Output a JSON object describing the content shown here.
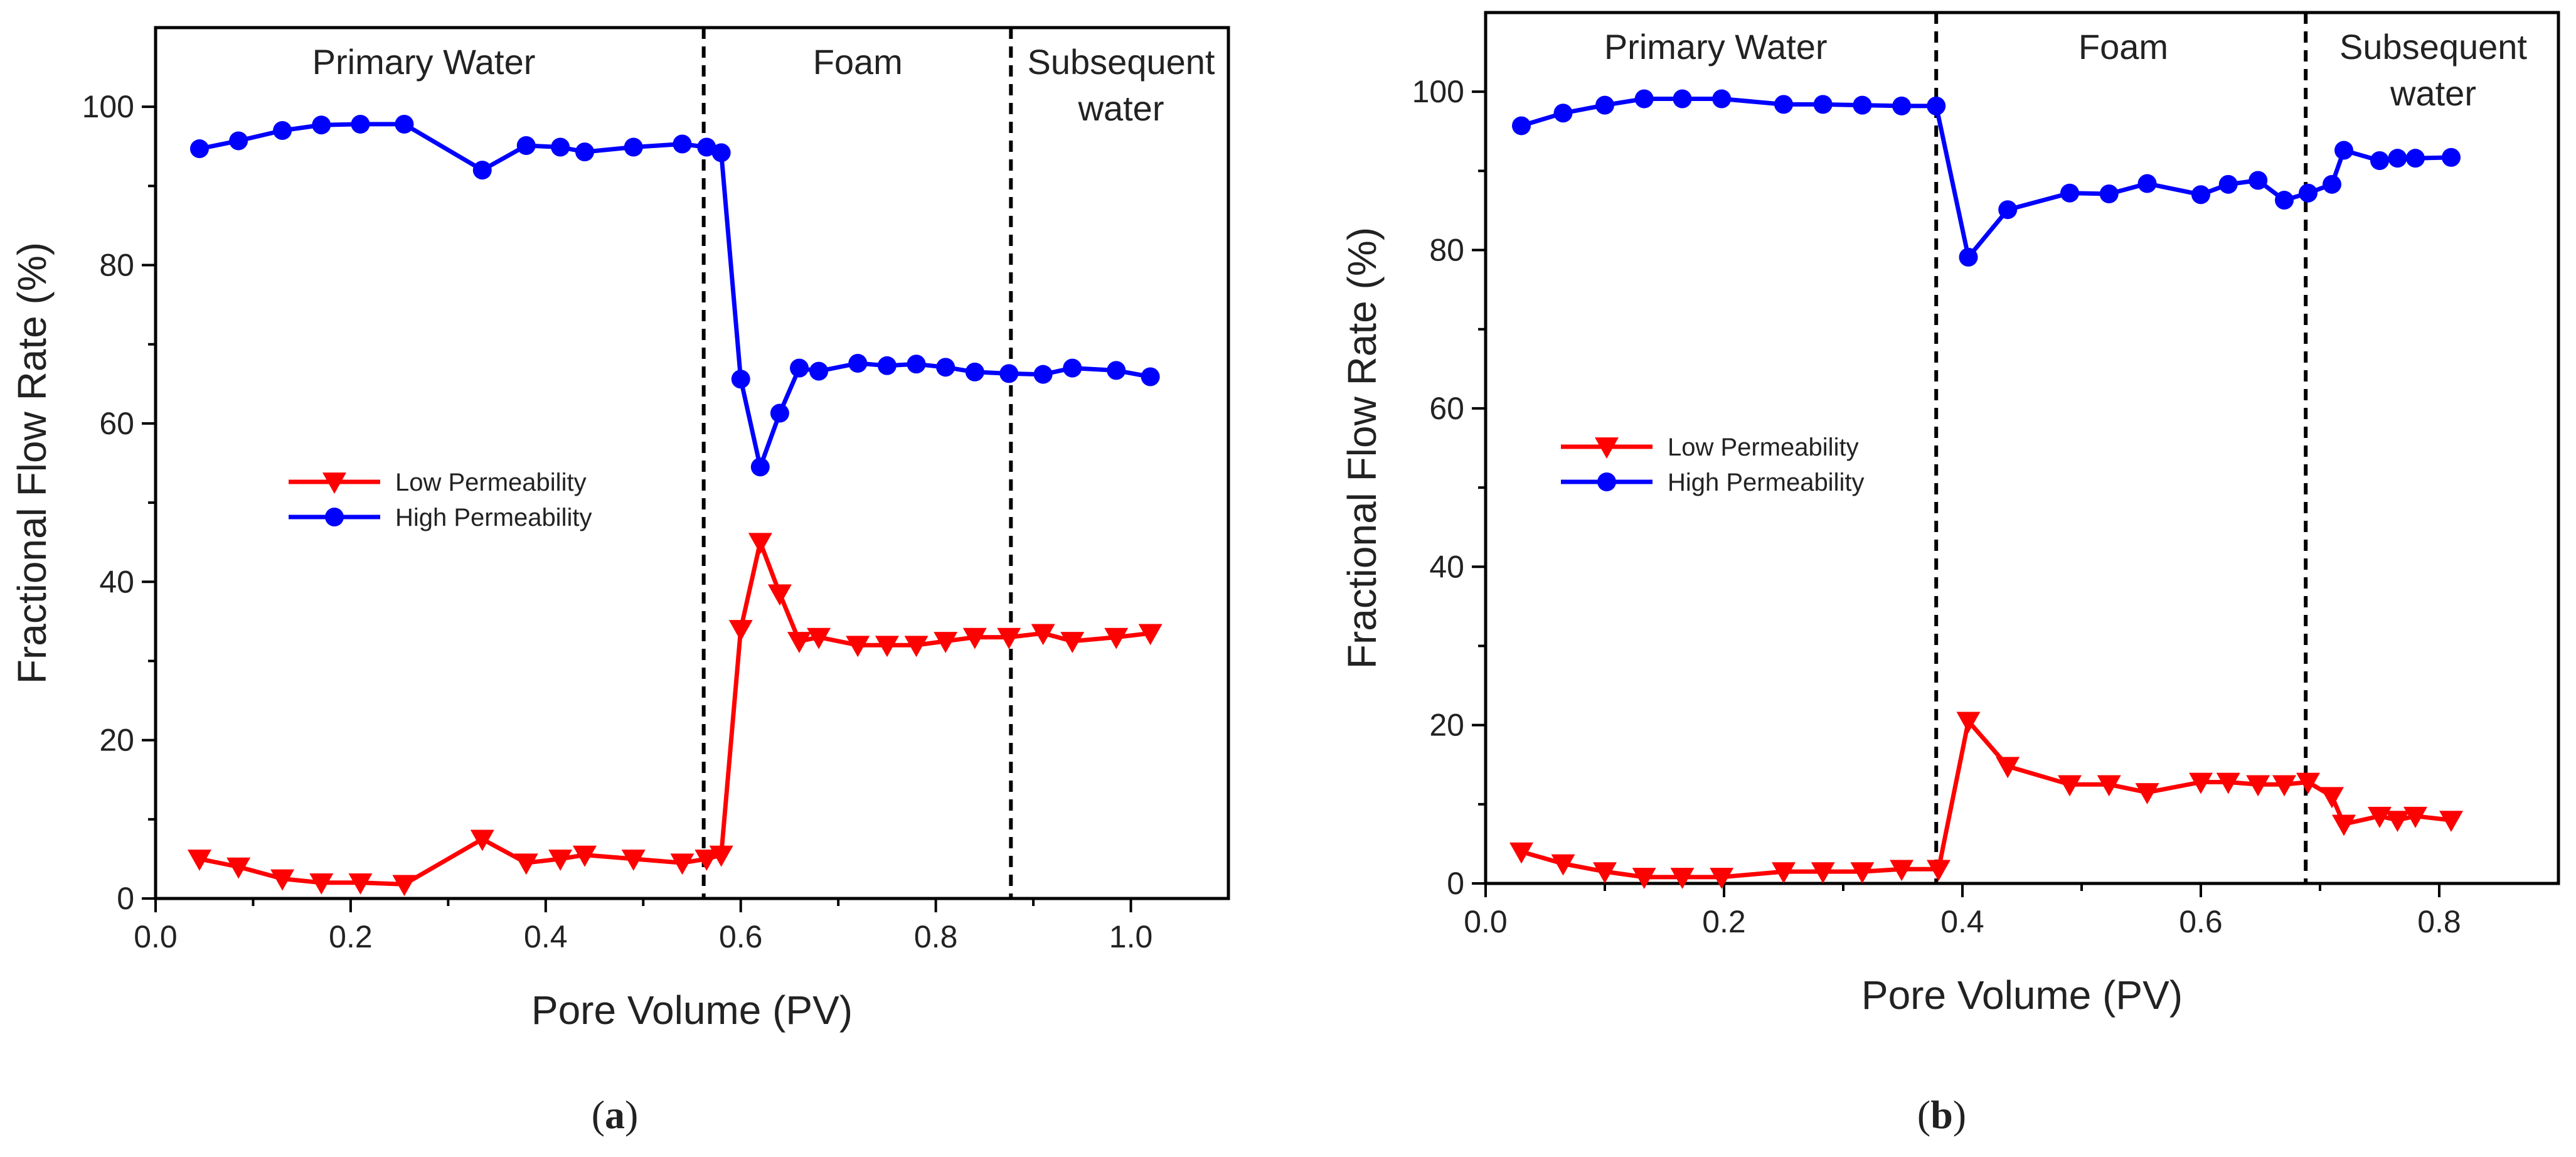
{
  "chart_data": [
    {
      "type": "line",
      "panel_label": "a",
      "xlabel": "Pore Volume (PV)",
      "ylabel": "Fractional Flow Rate (%)",
      "xlim": [
        0,
        1.1
      ],
      "ylim": [
        0,
        110
      ],
      "xticks": [
        "0.0",
        "0.2",
        "0.4",
        "0.6",
        "0.8",
        "1.0"
      ],
      "yticks": [
        "0",
        "20",
        "40",
        "60",
        "80",
        "100"
      ],
      "xtick_values": [
        0,
        0.2,
        0.4,
        0.6,
        0.8,
        1.0
      ],
      "ytick_values": [
        0,
        20,
        40,
        60,
        80,
        100
      ],
      "dividers": [
        0.562,
        0.877
      ],
      "regions": [
        {
          "lines": [
            "Primary Water"
          ],
          "x": 0.275
        },
        {
          "lines": [
            "Foam"
          ],
          "x": 0.72
        },
        {
          "lines": [
            "Subsequent",
            "water"
          ],
          "x": 0.99
        }
      ],
      "legend_position": "center-left",
      "series": [
        {
          "name": "Low Permeability",
          "color": "#ff0000",
          "marker": "triangle-down",
          "x": [
            0.045,
            0.085,
            0.13,
            0.17,
            0.21,
            0.255,
            0.335,
            0.38,
            0.415,
            0.44,
            0.49,
            0.54,
            0.565,
            0.58,
            0.6,
            0.62,
            0.64,
            0.66,
            0.68,
            0.72,
            0.75,
            0.78,
            0.81,
            0.84,
            0.875,
            0.91,
            0.94,
            0.985,
            1.02
          ],
          "y": [
            5.0,
            4.0,
            2.5,
            2.0,
            2.0,
            1.8,
            7.5,
            4.5,
            5.0,
            5.5,
            5.0,
            4.5,
            5.0,
            5.5,
            34.0,
            45.0,
            38.5,
            32.5,
            33.0,
            32.0,
            32.0,
            32.0,
            32.5,
            33.0,
            33.0,
            33.5,
            32.5,
            33.0,
            33.5
          ]
        },
        {
          "name": "High Permeability",
          "color": "#0000ff",
          "marker": "circle",
          "x": [
            0.045,
            0.085,
            0.13,
            0.17,
            0.21,
            0.255,
            0.335,
            0.38,
            0.415,
            0.44,
            0.49,
            0.54,
            0.565,
            0.58,
            0.6,
            0.62,
            0.64,
            0.66,
            0.68,
            0.72,
            0.75,
            0.78,
            0.81,
            0.84,
            0.875,
            0.91,
            0.94,
            0.985,
            1.02
          ],
          "y": [
            94.7,
            95.7,
            97.0,
            97.7,
            97.8,
            97.8,
            92.0,
            95.1,
            94.9,
            94.3,
            94.9,
            95.3,
            94.9,
            94.2,
            65.6,
            54.5,
            61.3,
            67.0,
            66.6,
            67.6,
            67.3,
            67.5,
            67.1,
            66.5,
            66.3,
            66.2,
            67.0,
            66.7,
            65.9
          ]
        }
      ]
    },
    {
      "type": "line",
      "panel_label": "b",
      "xlabel": "Pore Volume (PV)",
      "ylabel": "Fractional Flow Rate (%)",
      "xlim": [
        0,
        0.9
      ],
      "ylim": [
        0,
        110
      ],
      "xticks": [
        "0.0",
        "0.2",
        "0.4",
        "0.6",
        "0.8"
      ],
      "yticks": [
        "0",
        "20",
        "40",
        "60",
        "80",
        "100"
      ],
      "xtick_values": [
        0,
        0.2,
        0.4,
        0.6,
        0.8
      ],
      "ytick_values": [
        0,
        20,
        40,
        60,
        80,
        100
      ],
      "dividers": [
        0.378,
        0.688
      ],
      "regions": [
        {
          "lines": [
            "Primary Water"
          ],
          "x": 0.193
        },
        {
          "lines": [
            "Foam"
          ],
          "x": 0.535
        },
        {
          "lines": [
            "Subsequent",
            "water"
          ],
          "x": 0.795
        }
      ],
      "legend_position": "center-left",
      "series": [
        {
          "name": "Low Permeability",
          "color": "#ff0000",
          "marker": "triangle-down",
          "x": [
            0.03,
            0.065,
            0.1,
            0.133,
            0.165,
            0.198,
            0.25,
            0.283,
            0.316,
            0.349,
            0.38,
            0.405,
            0.438,
            0.49,
            0.523,
            0.555,
            0.6,
            0.623,
            0.648,
            0.67,
            0.69,
            0.71,
            0.72,
            0.75,
            0.765,
            0.78,
            0.81
          ],
          "y": [
            4.0,
            2.5,
            1.5,
            0.8,
            0.8,
            0.8,
            1.5,
            1.5,
            1.5,
            1.8,
            1.8,
            20.5,
            14.8,
            12.5,
            12.5,
            11.5,
            12.8,
            12.8,
            12.5,
            12.5,
            12.8,
            11.0,
            7.5,
            8.5,
            8.0,
            8.5,
            8.0
          ]
        },
        {
          "name": "High Permeability",
          "color": "#0000ff",
          "marker": "circle",
          "x": [
            0.03,
            0.065,
            0.1,
            0.133,
            0.165,
            0.198,
            0.25,
            0.283,
            0.316,
            0.349,
            0.378,
            0.405,
            0.438,
            0.49,
            0.523,
            0.555,
            0.6,
            0.623,
            0.648,
            0.67,
            0.69,
            0.71,
            0.72,
            0.75,
            0.765,
            0.78,
            0.81
          ],
          "y": [
            95.7,
            97.3,
            98.3,
            99.1,
            99.1,
            99.1,
            98.4,
            98.4,
            98.3,
            98.2,
            98.2,
            79.1,
            85.1,
            87.2,
            87.1,
            88.4,
            87.0,
            88.3,
            88.8,
            86.3,
            87.2,
            88.3,
            92.6,
            91.3,
            91.6,
            91.6,
            91.7
          ]
        }
      ]
    }
  ]
}
